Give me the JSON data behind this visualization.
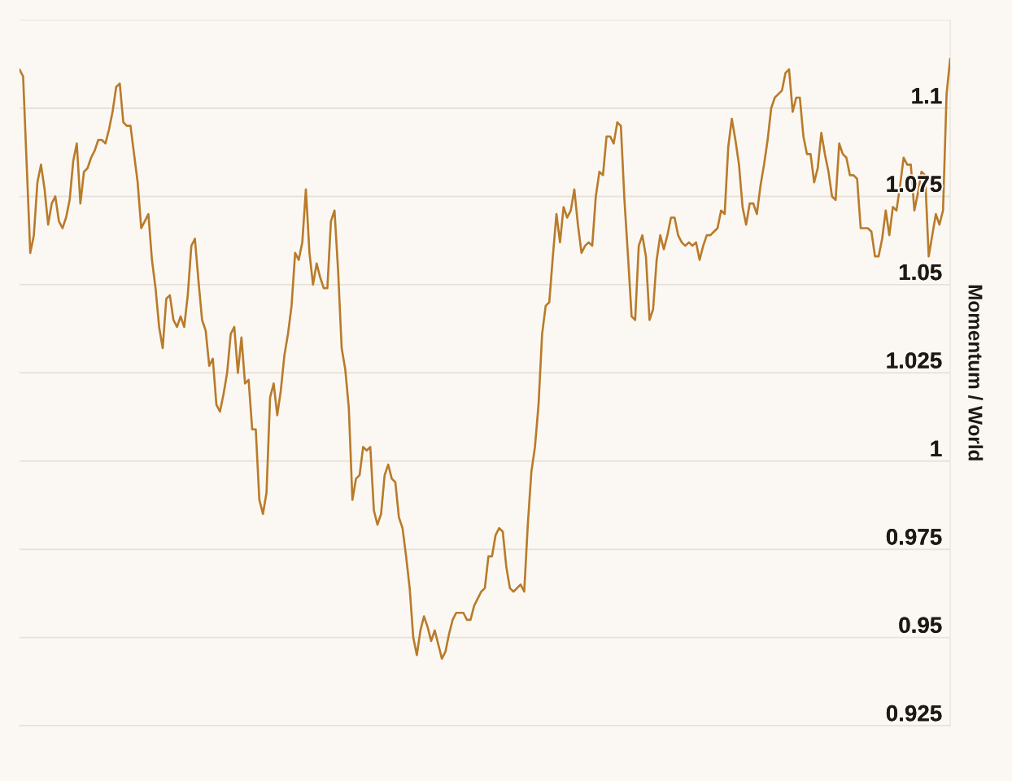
{
  "chart_data": {
    "type": "line",
    "ylabel": "Momentum / World",
    "categories": [
      null,
      null,
      null,
      null,
      null,
      null,
      null,
      null,
      null,
      null,
      null,
      null,
      null,
      null,
      null,
      null,
      null,
      null,
      null,
      null,
      null,
      null,
      null,
      null,
      null,
      null,
      null,
      null,
      null,
      null,
      null,
      null,
      null,
      null,
      null,
      null,
      null,
      null,
      null,
      null,
      null,
      null,
      null,
      null,
      null,
      null,
      null,
      null,
      null,
      null,
      null,
      null,
      null,
      null,
      null,
      null,
      null,
      null,
      null,
      null,
      null,
      null,
      null,
      null,
      null,
      null,
      null,
      null,
      null,
      null,
      null,
      null,
      null,
      null,
      null,
      null,
      null,
      null,
      null,
      null,
      null,
      null,
      null,
      null,
      null,
      null,
      null,
      null,
      null,
      null,
      null,
      null,
      null,
      null,
      null,
      null,
      null,
      null,
      null,
      null,
      null,
      null,
      null,
      null,
      null,
      null,
      null,
      null,
      null,
      null,
      null,
      null,
      null,
      null,
      null,
      null,
      null,
      null,
      null,
      null,
      null,
      null,
      null,
      null,
      null,
      null,
      null,
      null,
      null,
      null,
      null,
      null,
      null,
      null,
      null,
      null,
      null,
      null,
      null,
      null,
      null,
      null,
      null,
      null,
      null,
      null,
      null,
      null,
      null,
      null,
      null,
      null,
      null,
      null,
      null,
      null,
      null,
      null,
      null,
      null,
      null,
      null,
      null,
      null,
      null,
      null,
      null,
      null,
      null,
      null,
      null,
      null,
      null,
      null,
      null,
      null,
      null,
      null,
      null,
      null,
      null,
      null,
      null,
      null,
      null,
      null,
      null,
      null,
      null,
      null,
      null,
      null,
      null,
      null,
      null,
      null,
      null,
      null,
      null,
      null,
      null,
      null,
      null,
      null,
      null,
      null,
      null,
      null,
      null,
      null,
      null,
      null,
      null,
      null,
      null,
      null,
      null,
      null,
      null,
      null,
      null,
      null,
      null,
      null,
      null,
      null,
      null,
      null,
      null,
      null,
      null,
      null,
      null,
      null,
      null,
      null,
      null,
      null,
      null,
      null,
      null,
      null,
      null,
      null,
      null,
      null,
      null,
      null,
      null,
      null,
      null,
      null,
      null,
      null,
      null,
      null,
      null,
      null,
      null,
      null,
      null
    ],
    "series": [
      {
        "color": "#b97b2b",
        "values": [
          1.111,
          1.109,
          1.084,
          1.059,
          1.064,
          1.079,
          1.084,
          1.077,
          1.067,
          1.073,
          1.075,
          1.068,
          1.066,
          1.069,
          1.074,
          1.085,
          1.09,
          1.073,
          1.082,
          1.083,
          1.086,
          1.088,
          1.091,
          1.091,
          1.09,
          1.094,
          1.099,
          1.106,
          1.107,
          1.096,
          1.095,
          1.095,
          1.087,
          1.079,
          1.066,
          1.068,
          1.07,
          1.057,
          1.049,
          1.038,
          1.032,
          1.046,
          1.047,
          1.04,
          1.038,
          1.041,
          1.038,
          1.047,
          1.061,
          1.063,
          1.051,
          1.04,
          1.037,
          1.027,
          1.029,
          1.016,
          1.014,
          1.019,
          1.025,
          1.036,
          1.038,
          1.025,
          1.035,
          1.022,
          1.023,
          1.009,
          1.009,
          0.989,
          0.985,
          0.991,
          1.018,
          1.022,
          1.013,
          1.02,
          1.03,
          1.036,
          1.044,
          1.059,
          1.057,
          1.062,
          1.077,
          1.059,
          1.05,
          1.056,
          1.052,
          1.049,
          1.049,
          1.068,
          1.071,
          1.054,
          1.032,
          1.026,
          1.015,
          0.989,
          0.995,
          0.996,
          1.004,
          1.003,
          1.004,
          0.986,
          0.982,
          0.985,
          0.996,
          0.999,
          0.995,
          0.994,
          0.984,
          0.981,
          0.973,
          0.964,
          0.95,
          0.945,
          0.952,
          0.956,
          0.953,
          0.949,
          0.952,
          0.948,
          0.944,
          0.946,
          0.951,
          0.955,
          0.957,
          0.957,
          0.957,
          0.955,
          0.955,
          0.959,
          0.961,
          0.963,
          0.964,
          0.973,
          0.973,
          0.979,
          0.981,
          0.98,
          0.97,
          0.964,
          0.963,
          0.964,
          0.965,
          0.963,
          0.982,
          0.997,
          1.004,
          1.016,
          1.036,
          1.044,
          1.045,
          1.058,
          1.07,
          1.062,
          1.072,
          1.069,
          1.071,
          1.077,
          1.067,
          1.059,
          1.061,
          1.062,
          1.061,
          1.075,
          1.082,
          1.081,
          1.092,
          1.092,
          1.09,
          1.096,
          1.095,
          1.074,
          1.058,
          1.041,
          1.04,
          1.061,
          1.064,
          1.058,
          1.04,
          1.043,
          1.057,
          1.064,
          1.06,
          1.064,
          1.069,
          1.069,
          1.064,
          1.062,
          1.061,
          1.062,
          1.061,
          1.062,
          1.057,
          1.061,
          1.064,
          1.064,
          1.065,
          1.066,
          1.071,
          1.07,
          1.089,
          1.097,
          1.091,
          1.084,
          1.072,
          1.067,
          1.073,
          1.073,
          1.07,
          1.078,
          1.084,
          1.091,
          1.1,
          1.103,
          1.104,
          1.105,
          1.11,
          1.111,
          1.099,
          1.103,
          1.103,
          1.092,
          1.087,
          1.087,
          1.079,
          1.083,
          1.093,
          1.087,
          1.082,
          1.075,
          1.074,
          1.09,
          1.087,
          1.086,
          1.081,
          1.081,
          1.08,
          1.066,
          1.066,
          1.066,
          1.065,
          1.058,
          1.058,
          1.063,
          1.071,
          1.064,
          1.072,
          1.071,
          1.078,
          1.086,
          1.084,
          1.084,
          1.071,
          1.076,
          1.082,
          1.081,
          1.058,
          1.064,
          1.07,
          1.067,
          1.071,
          1.104,
          1.114
        ]
      }
    ],
    "ylim": [
      0.925,
      1.125
    ],
    "yticks": [
      0.925,
      0.95,
      0.975,
      1,
      1.025,
      1.05,
      1.075,
      1.1,
      {
        "value": 1.125,
        "label": null
      }
    ],
    "grid": "y",
    "tick_labels": "y"
  }
}
